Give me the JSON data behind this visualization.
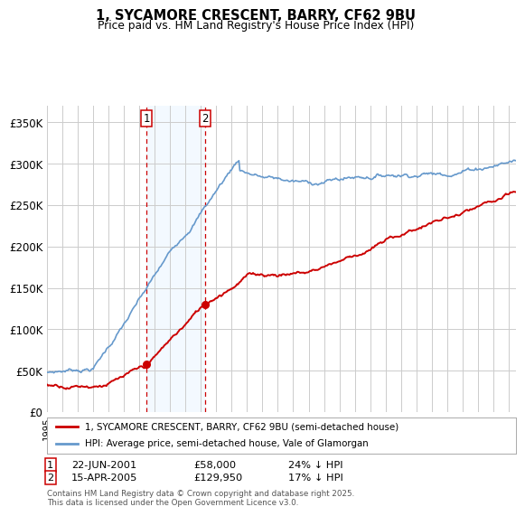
{
  "title_line1": "1, SYCAMORE CRESCENT, BARRY, CF62 9BU",
  "title_line2": "Price paid vs. HM Land Registry's House Price Index (HPI)",
  "ylabel_ticks": [
    "£0",
    "£50K",
    "£100K",
    "£150K",
    "£200K",
    "£250K",
    "£300K",
    "£350K"
  ],
  "ytick_values": [
    0,
    50000,
    100000,
    150000,
    200000,
    250000,
    300000,
    350000
  ],
  "ylim": [
    0,
    370000
  ],
  "xlim_start": 1995.0,
  "xlim_end": 2025.5,
  "purchase1_date": 2001.47,
  "purchase1_price": 58000,
  "purchase2_date": 2005.28,
  "purchase2_price": 129950,
  "legend_line1": "1, SYCAMORE CRESCENT, BARRY, CF62 9BU (semi-detached house)",
  "legend_line2": "HPI: Average price, semi-detached house, Vale of Glamorgan",
  "footer": "Contains HM Land Registry data © Crown copyright and database right 2025.\nThis data is licensed under the Open Government Licence v3.0.",
  "line_color_red": "#cc0000",
  "line_color_blue": "#6699cc",
  "shade_color": "#ddeeff",
  "grid_color": "#cccccc",
  "bg_color": "#ffffff"
}
